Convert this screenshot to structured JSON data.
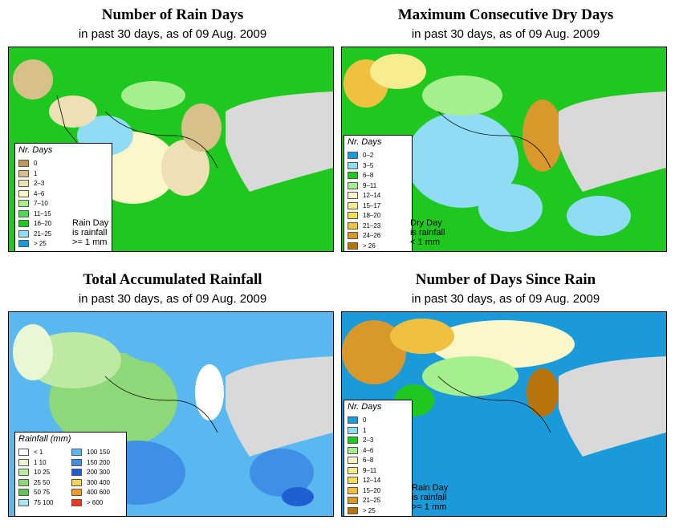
{
  "panels": [
    {
      "title": "Number of Rain Days",
      "subtitle": "in past 30 days, as of  09 Aug. 2009",
      "legend_title": "Nr. Days",
      "note": [
        "Rain Day",
        "is rainfall",
        ">= 1 mm"
      ],
      "legend": [
        {
          "label": "0",
          "color": "#c09a5a"
        },
        {
          "label": "1",
          "color": "#d8c08a"
        },
        {
          "label": "2–3",
          "color": "#ece0b4"
        },
        {
          "label": "4–6",
          "color": "#fbf7c8"
        },
        {
          "label": "7–10",
          "color": "#a6ef8e"
        },
        {
          "label": "11–15",
          "color": "#4fdb4f"
        },
        {
          "label": "16–20",
          "color": "#1ec81e"
        },
        {
          "label": "21–25",
          "color": "#8fdcf4"
        },
        {
          "label": "> 25",
          "color": "#1a9ad8"
        }
      ]
    },
    {
      "title": "Maximum Consecutive Dry Days",
      "subtitle": "in past 30 days, as of  09 Aug. 2009",
      "legend_title": "Nr. Days",
      "note": [
        "Dry Day",
        "is rainfall",
        "< 1 mm"
      ],
      "legend": [
        {
          "label": "0–2",
          "color": "#1a9ad8"
        },
        {
          "label": "3–5",
          "color": "#8fdcf4"
        },
        {
          "label": "6–8",
          "color": "#1ec81e"
        },
        {
          "label": "9–11",
          "color": "#a6ef8e"
        },
        {
          "label": "12–14",
          "color": "#fbf7c8"
        },
        {
          "label": "15–17",
          "color": "#f8ec90"
        },
        {
          "label": "18–20",
          "color": "#f7de5a"
        },
        {
          "label": "21–23",
          "color": "#f0c040"
        },
        {
          "label": "24–26",
          "color": "#d8982c"
        },
        {
          "label": "> 26",
          "color": "#b8740c"
        }
      ]
    },
    {
      "title": "Total Accumulated Rainfall",
      "subtitle": "in past 30 days, as of  09 Aug. 2009",
      "legend_title": "Rainfall (mm)",
      "legend": [
        {
          "label": "< 1",
          "color": "#ffffff"
        },
        {
          "label": "1   10",
          "color": "#eaf7d4"
        },
        {
          "label": "10   25",
          "color": "#bde9a3"
        },
        {
          "label": "25   50",
          "color": "#8ed87a"
        },
        {
          "label": "50   75",
          "color": "#5fc35a"
        },
        {
          "label": "75   100",
          "color": "#a8e6f2"
        },
        {
          "label": "100   150",
          "color": "#5ab8f0"
        },
        {
          "label": "150   200",
          "color": "#3f8fe6"
        },
        {
          "label": "200   300",
          "color": "#1f5fd4"
        },
        {
          "label": "300   400",
          "color": "#f4d35a"
        },
        {
          "label": "400   600",
          "color": "#f29a2a"
        },
        {
          "label": "> 600",
          "color": "#ee3a1a"
        }
      ]
    },
    {
      "title": "Number of Days Since Rain",
      "subtitle": "in past 30 days, as of  09 Aug. 2009",
      "legend_title": "Nr. Days",
      "note": [
        "Rain Day",
        "is rainfall",
        ">= 1 mm"
      ],
      "legend": [
        {
          "label": "0",
          "color": "#1a9ad8"
        },
        {
          "label": "1",
          "color": "#8fdcf4"
        },
        {
          "label": "2–3",
          "color": "#1ec81e"
        },
        {
          "label": "4–6",
          "color": "#a6ef8e"
        },
        {
          "label": "6–8",
          "color": "#fbf7c8"
        },
        {
          "label": "9–11",
          "color": "#f8ec90"
        },
        {
          "label": "12–14",
          "color": "#f7de5a"
        },
        {
          "label": "15–20",
          "color": "#f0c040"
        },
        {
          "label": "21–25",
          "color": "#d8982c"
        },
        {
          "label": "> 25",
          "color": "#b8740c"
        }
      ]
    }
  ]
}
